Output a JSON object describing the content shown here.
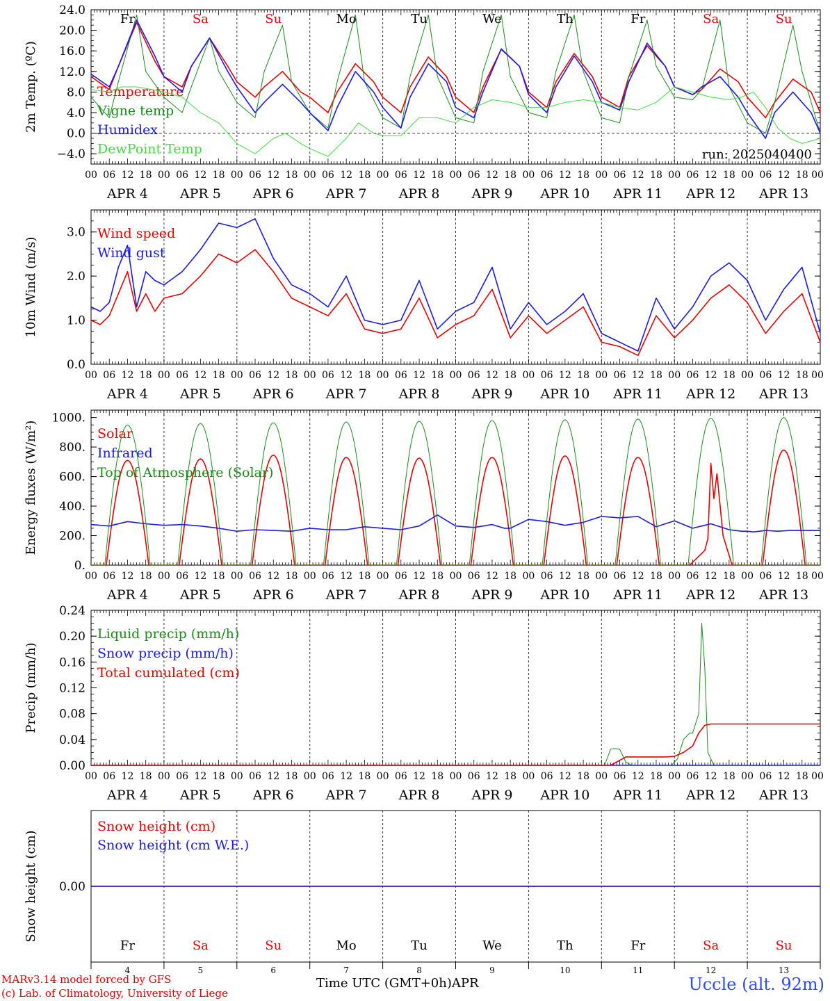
{
  "figure": {
    "footer_line1": "MARv3.14 model forced by GFS",
    "footer_line2": "(c) Lab. of Climatology, University of Liege",
    "x_axis_title": "Time UTC (GMT+0h)",
    "month_label": "APR",
    "station": "Uccle (alt. 92m)",
    "run_label": "run: 2025040400",
    "colors": {
      "red": "#e60000",
      "green": "#1a8a1a",
      "blue": "#1a1ae6",
      "light_green": "#3fdc3f"
    }
  },
  "days": {
    "labels": [
      "APR   4",
      "APR   5",
      "APR   6",
      "APR   7",
      "APR   8",
      "APR   9",
      "APR  10",
      "APR  11",
      "APR  12",
      "APR  13"
    ],
    "numbers": [
      "4",
      "5",
      "6",
      "7",
      "8",
      "9",
      "10",
      "11",
      "12",
      "13"
    ],
    "weekdays": [
      "Fr",
      "Sa",
      "Su",
      "Mo",
      "Tu",
      "We",
      "Th",
      "Fr",
      "Sa",
      "Su"
    ],
    "weekend": [
      false,
      true,
      true,
      false,
      false,
      false,
      false,
      false,
      true,
      true
    ],
    "hour_ticks": [
      "00",
      "06",
      "12",
      "18"
    ],
    "final_tick": "00"
  },
  "chart_data": [
    {
      "type": "line",
      "ylabel": "2m Temp. (ºC)",
      "ylim": [
        -6,
        24
      ],
      "yticks": [
        -4,
        0,
        4,
        8,
        12,
        16,
        20,
        24
      ],
      "ytick_labels": [
        "−4.0",
        "0.0",
        "4.0",
        "8.0",
        "12.0",
        "16.0",
        "20.0",
        "24.0"
      ],
      "zero_line": true,
      "run_label": true,
      "x_unit": "hours since APR 4 00 UTC",
      "series": [
        {
          "name": "Temperature",
          "color": "#e60000",
          "x": [
            0,
            6,
            9,
            15,
            21,
            24,
            30,
            33,
            39,
            45,
            48,
            54,
            57,
            63,
            69,
            72,
            78,
            81,
            87,
            93,
            96,
            102,
            105,
            111,
            117,
            120,
            126,
            129,
            135,
            141,
            144,
            150,
            153,
            159,
            165,
            168,
            174,
            177,
            183,
            189,
            192,
            198,
            201,
            207,
            213,
            216,
            222,
            225,
            231,
            237,
            240
          ],
          "y": [
            11,
            8.5,
            13,
            21.5,
            14,
            11,
            9,
            13,
            18.5,
            13,
            10,
            7,
            9,
            12,
            8,
            7,
            4,
            8,
            13.5,
            10,
            7,
            4,
            9,
            14.8,
            11,
            7,
            4,
            9,
            16.3,
            13,
            8,
            5,
            10,
            15.5,
            11,
            7,
            5,
            11,
            17,
            13,
            9,
            7.5,
            8.5,
            12.5,
            10,
            7,
            3,
            6,
            10.5,
            8,
            4
          ]
        },
        {
          "name": "Vigne temp",
          "color": "#1a8a1a",
          "x": [
            0,
            6,
            9,
            15,
            18,
            24,
            30,
            33,
            39,
            42,
            48,
            54,
            57,
            63,
            66,
            72,
            78,
            81,
            87,
            90,
            96,
            102,
            105,
            111,
            114,
            120,
            126,
            129,
            135,
            138,
            144,
            150,
            153,
            159,
            162,
            168,
            174,
            177,
            183,
            186,
            192,
            198,
            201,
            207,
            210,
            216,
            222,
            225,
            231,
            234,
            240
          ],
          "y": [
            7,
            3,
            10,
            23,
            12,
            7,
            4,
            9,
            18.5,
            12,
            6,
            3,
            12,
            21,
            10,
            4,
            1,
            10,
            23,
            10,
            3,
            1,
            11,
            23,
            11,
            3,
            2,
            12,
            23,
            11,
            4,
            3,
            12,
            23,
            12,
            3,
            2,
            11,
            22,
            13,
            7,
            6.5,
            8.5,
            22,
            9,
            2,
            0,
            6,
            21,
            12,
            0
          ]
        },
        {
          "name": "Humidex",
          "color": "#1a1ae6",
          "x": [
            0,
            6,
            9,
            15,
            21,
            24,
            30,
            33,
            39,
            45,
            48,
            54,
            57,
            63,
            69,
            72,
            78,
            81,
            87,
            93,
            96,
            102,
            105,
            111,
            117,
            120,
            126,
            129,
            135,
            141,
            144,
            150,
            153,
            159,
            165,
            168,
            174,
            177,
            183,
            189,
            192,
            198,
            201,
            207,
            213,
            216,
            222,
            225,
            231,
            237,
            240
          ],
          "y": [
            11.5,
            9,
            13,
            22,
            15,
            11,
            8,
            13,
            18.5,
            12,
            9,
            4,
            6,
            9.5,
            6,
            4,
            0.5,
            5,
            12,
            8,
            5,
            1,
            7,
            13.5,
            10,
            5,
            3,
            8,
            16.4,
            13,
            7.5,
            4,
            9,
            15,
            10,
            6,
            4.5,
            10,
            17.5,
            13,
            9,
            7.5,
            9,
            11,
            7,
            4,
            -1,
            4,
            8,
            4,
            0
          ]
        },
        {
          "name": "DewPoint Temp",
          "color": "#3fdc3f",
          "x": [
            0,
            6,
            10,
            15,
            20,
            24,
            30,
            36,
            42,
            48,
            54,
            60,
            64,
            69,
            72,
            78,
            84,
            88,
            93,
            96,
            102,
            108,
            114,
            120,
            126,
            132,
            138,
            144,
            150,
            156,
            162,
            168,
            174,
            180,
            186,
            192,
            198,
            204,
            210,
            214,
            218,
            222,
            226,
            230,
            234,
            240
          ],
          "y": [
            8.5,
            8,
            9,
            9,
            8.5,
            8,
            7,
            4,
            2,
            -2,
            -4,
            -1,
            0,
            -2,
            -3,
            -4.5,
            -1,
            2,
            0,
            -0.5,
            -0.5,
            3,
            3,
            2,
            5,
            6.5,
            6,
            5,
            5,
            6,
            6.5,
            6,
            5,
            4.5,
            6,
            9,
            8,
            7,
            6.5,
            7,
            8,
            5,
            1,
            -1,
            -2,
            -1
          ]
        }
      ]
    },
    {
      "type": "line",
      "ylabel": "10m Wind (m/s)",
      "ylim": [
        0,
        3.5
      ],
      "yticks": [
        0,
        1,
        2,
        3
      ],
      "ytick_labels": [
        "0.0",
        "1.0",
        "2.0",
        "3.0"
      ],
      "x_unit": "hours since APR 4 00 UTC",
      "series": [
        {
          "name": "Wind speed",
          "color": "#e60000",
          "x": [
            0,
            3,
            6,
            9,
            12,
            15,
            18,
            21,
            24,
            30,
            36,
            42,
            48,
            54,
            60,
            66,
            72,
            78,
            84,
            90,
            96,
            102,
            108,
            114,
            120,
            126,
            132,
            138,
            144,
            150,
            156,
            162,
            168,
            174,
            180,
            186,
            192,
            198,
            204,
            210,
            216,
            222,
            228,
            234,
            240
          ],
          "y": [
            1.0,
            0.9,
            1.1,
            1.6,
            2.1,
            1.2,
            1.6,
            1.2,
            1.5,
            1.6,
            2.0,
            2.5,
            2.3,
            2.6,
            2.1,
            1.5,
            1.3,
            1.1,
            1.6,
            0.8,
            0.7,
            0.8,
            1.5,
            0.6,
            0.9,
            1.1,
            1.7,
            0.6,
            1.1,
            0.7,
            1.0,
            1.3,
            0.5,
            0.4,
            0.2,
            1.1,
            0.6,
            1.0,
            1.5,
            1.8,
            1.4,
            0.7,
            1.2,
            1.6,
            0.5
          ]
        },
        {
          "name": "Wind gust",
          "color": "#1a1ae6",
          "x": [
            0,
            3,
            6,
            9,
            12,
            15,
            18,
            21,
            24,
            30,
            36,
            42,
            48,
            54,
            60,
            66,
            72,
            78,
            84,
            90,
            96,
            102,
            108,
            114,
            120,
            126,
            132,
            138,
            144,
            150,
            156,
            162,
            168,
            174,
            180,
            186,
            192,
            198,
            204,
            210,
            216,
            222,
            228,
            234,
            240
          ],
          "y": [
            1.3,
            1.2,
            1.4,
            2.2,
            2.7,
            1.3,
            2.1,
            1.9,
            1.8,
            2.1,
            2.6,
            3.2,
            3.1,
            3.3,
            2.4,
            1.8,
            1.6,
            1.3,
            2.0,
            1.0,
            0.9,
            1.0,
            1.9,
            0.8,
            1.2,
            1.4,
            2.2,
            0.8,
            1.4,
            0.9,
            1.2,
            1.6,
            0.7,
            0.5,
            0.3,
            1.5,
            0.8,
            1.3,
            2.0,
            2.3,
            1.9,
            1.0,
            1.7,
            2.2,
            0.7
          ]
        }
      ]
    },
    {
      "type": "line",
      "ylabel": "Energy fluxes (W/m²)",
      "ylim": [
        0,
        1050
      ],
      "yticks": [
        0,
        200,
        400,
        600,
        800,
        1000
      ],
      "ytick_labels": [
        "0.",
        "200.",
        "400.",
        "600.",
        "800.",
        "1000."
      ],
      "x_unit": "hours since APR 4 00 UTC",
      "series": [
        {
          "name": "Solar",
          "color": "#e60000",
          "diurnal": {
            "rise": 5,
            "set": 19,
            "peaks": [
              710,
              720,
              745,
              730,
              725,
              730,
              740,
              730,
              720,
              780
            ]
          },
          "override_day": 8,
          "override_x": [
            0,
            5,
            8,
            10,
            11,
            12,
            13,
            14,
            16,
            19,
            24
          ],
          "override_y": [
            0,
            0,
            60,
            100,
            180,
            690,
            450,
            620,
            200,
            0,
            0
          ]
        },
        {
          "name": "Infrared",
          "color": "#1a1ae6",
          "x": [
            0,
            6,
            12,
            18,
            24,
            30,
            36,
            42,
            48,
            54,
            60,
            66,
            72,
            78,
            84,
            90,
            96,
            102,
            108,
            114,
            120,
            126,
            132,
            136,
            138,
            144,
            150,
            156,
            162,
            168,
            174,
            180,
            186,
            192,
            198,
            204,
            210,
            212,
            214,
            216,
            218,
            220,
            222,
            226,
            230,
            240
          ],
          "y": [
            275,
            265,
            295,
            280,
            270,
            275,
            265,
            250,
            230,
            240,
            235,
            230,
            250,
            240,
            240,
            260,
            250,
            240,
            265,
            340,
            265,
            255,
            275,
            250,
            250,
            310,
            295,
            270,
            290,
            330,
            320,
            330,
            260,
            300,
            250,
            280,
            240,
            235,
            230,
            230,
            225,
            230,
            235,
            230,
            235,
            235
          ]
        },
        {
          "name": "Top of Atmosphere (Solar)",
          "color": "#1a8a1a",
          "diurnal": {
            "rise": 4.5,
            "set": 19.5,
            "peaks": [
              950,
              960,
              965,
              970,
              975,
              980,
              985,
              990,
              995,
              1000
            ]
          }
        }
      ]
    },
    {
      "type": "line",
      "ylabel": "Precip (mm/h)",
      "ylim": [
        0,
        0.24
      ],
      "yticks": [
        0,
        0.04,
        0.08,
        0.12,
        0.16,
        0.2,
        0.24
      ],
      "ytick_labels": [
        "0.00",
        "0.04",
        "0.08",
        "0.12",
        "0.16",
        "0.20",
        "0.24"
      ],
      "x_unit": "hours since APR 4 00 UTC",
      "series": [
        {
          "name": "Liquid precip (mm/h)",
          "color": "#1a8a1a",
          "x": [
            0,
            169,
            171,
            172,
            174,
            175,
            176,
            178,
            191,
            193,
            195,
            197,
            198,
            200,
            201,
            202,
            203,
            204,
            205,
            207,
            240
          ],
          "y": [
            0,
            0,
            0.025,
            0.026,
            0.025,
            0.015,
            0.005,
            0,
            0,
            0.01,
            0.04,
            0.05,
            0.05,
            0.08,
            0.22,
            0.15,
            0.02,
            0.01,
            0,
            0,
            0
          ]
        },
        {
          "name": "Snow precip (mm/h)",
          "color": "#1a1ae6",
          "x": [
            0,
            240
          ],
          "y": [
            0,
            0
          ]
        },
        {
          "name": "Total cumulated (cm)",
          "color": "#e60000",
          "x": [
            0,
            171,
            176,
            189,
            192,
            195,
            198,
            200,
            202,
            204,
            240
          ],
          "y": [
            0,
            0,
            0.013,
            0.013,
            0.014,
            0.02,
            0.03,
            0.05,
            0.062,
            0.064,
            0.064
          ]
        }
      ]
    },
    {
      "type": "line",
      "ylabel": "Snow height (cm)",
      "ylim": [
        -0.1,
        0.1
      ],
      "yticks": [
        0
      ],
      "ytick_labels": [
        "0.00"
      ],
      "x_unit": "hours since APR 4 00 UTC",
      "series": [
        {
          "name": "Snow height (cm)",
          "color": "#e60000",
          "x": [
            0,
            240
          ],
          "y": [
            0,
            0
          ]
        },
        {
          "name": "Snow height (cm W.E.)",
          "color": "#1a1ae6",
          "x": [
            0,
            240
          ],
          "y": [
            0,
            0
          ]
        }
      ]
    }
  ]
}
